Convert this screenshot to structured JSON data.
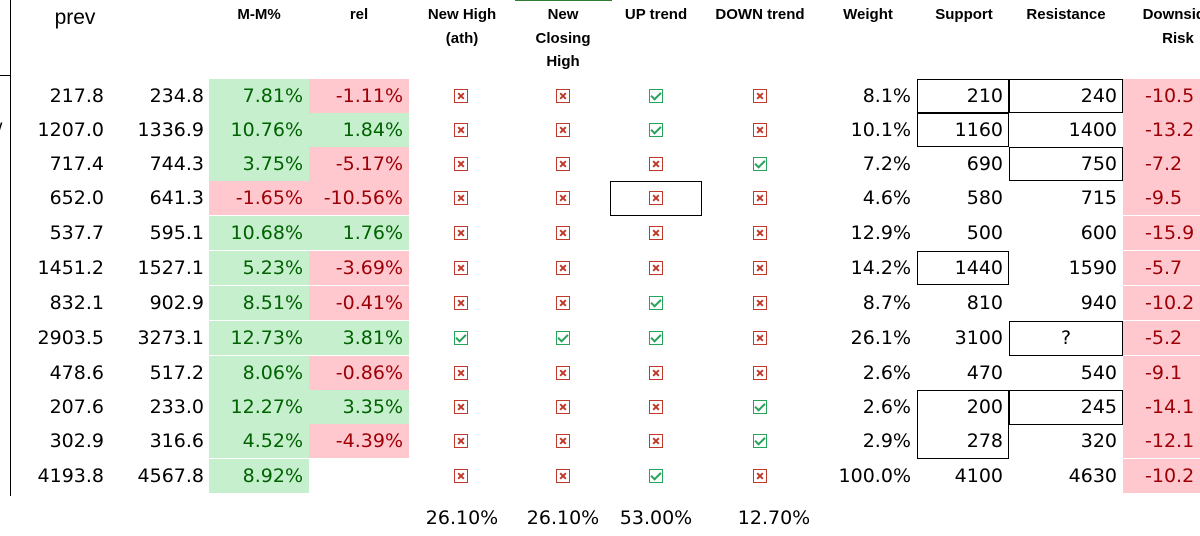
{
  "headers": {
    "prev": "prev",
    "mm": "M-M%",
    "rel": "rel",
    "new_high": [
      "New High",
      "(ath)"
    ],
    "new_closing_high": [
      "New",
      "Closing",
      "High"
    ],
    "up_trend": "UP trend",
    "down_trend": "DOWN trend",
    "weight": "Weight",
    "support": "Support",
    "resistance": "Resistance",
    "downside_risk": [
      "Downside",
      "Risk"
    ]
  },
  "rows": [
    {
      "prev": "217.8",
      "cur": "234.8",
      "mm": "7.81%",
      "mm_color": "green",
      "rel": "-1.11%",
      "rel_color": "red",
      "new_high": "x",
      "new_closing_high": "x",
      "up": "v",
      "down": "x",
      "weight": "8.1%",
      "support": "210",
      "resistance": "240",
      "risk": "-10.5"
    },
    {
      "prev": "1207.0",
      "cur": "1336.9",
      "mm": "10.76%",
      "mm_color": "green",
      "rel": "1.84%",
      "rel_color": "green",
      "new_high": "x",
      "new_closing_high": "x",
      "up": "v",
      "down": "x",
      "weight": "10.1%",
      "support": "1160",
      "resistance": "1400",
      "risk": "-13.2"
    },
    {
      "prev": "717.4",
      "cur": "744.3",
      "mm": "3.75%",
      "mm_color": "green",
      "rel": "-5.17%",
      "rel_color": "red",
      "new_high": "x",
      "new_closing_high": "x",
      "up": "x",
      "down": "v",
      "weight": "7.2%",
      "support": "690",
      "resistance": "750",
      "risk": "-7.2"
    },
    {
      "prev": "652.0",
      "cur": "641.3",
      "mm": "-1.65%",
      "mm_color": "red",
      "rel": "-10.56%",
      "rel_color": "red",
      "new_high": "x",
      "new_closing_high": "x",
      "up": "x",
      "down": "x",
      "weight": "4.6%",
      "support": "580",
      "resistance": "715",
      "risk": "-9.5"
    },
    {
      "prev": "537.7",
      "cur": "595.1",
      "mm": "10.68%",
      "mm_color": "green",
      "rel": "1.76%",
      "rel_color": "green",
      "new_high": "x",
      "new_closing_high": "x",
      "up": "x",
      "down": "x",
      "weight": "12.9%",
      "support": "500",
      "resistance": "600",
      "risk": "-15.9"
    },
    {
      "prev": "1451.2",
      "cur": "1527.1",
      "mm": "5.23%",
      "mm_color": "green",
      "rel": "-3.69%",
      "rel_color": "red",
      "new_high": "x",
      "new_closing_high": "x",
      "up": "x",
      "down": "x",
      "weight": "14.2%",
      "support": "1440",
      "resistance": "1590",
      "risk": "-5.7"
    },
    {
      "prev": "832.1",
      "cur": "902.9",
      "mm": "8.51%",
      "mm_color": "green",
      "rel": "-0.41%",
      "rel_color": "red",
      "new_high": "x",
      "new_closing_high": "x",
      "up": "v",
      "down": "x",
      "weight": "8.7%",
      "support": "810",
      "resistance": "940",
      "risk": "-10.2"
    },
    {
      "prev": "2903.5",
      "cur": "3273.1",
      "mm": "12.73%",
      "mm_color": "green",
      "rel": "3.81%",
      "rel_color": "green",
      "new_high": "v",
      "new_closing_high": "v",
      "up": "v",
      "down": "x",
      "weight": "26.1%",
      "support": "3100",
      "resistance": "?",
      "risk": "-5.2"
    },
    {
      "prev": "478.6",
      "cur": "517.2",
      "mm": "8.06%",
      "mm_color": "green",
      "rel": "-0.86%",
      "rel_color": "red",
      "new_high": "x",
      "new_closing_high": "x",
      "up": "x",
      "down": "x",
      "weight": "2.6%",
      "support": "470",
      "resistance": "540",
      "risk": "-9.1"
    },
    {
      "prev": "207.6",
      "cur": "233.0",
      "mm": "12.27%",
      "mm_color": "green",
      "rel": "3.35%",
      "rel_color": "green",
      "new_high": "x",
      "new_closing_high": "x",
      "up": "x",
      "down": "v",
      "weight": "2.6%",
      "support": "200",
      "resistance": "245",
      "risk": "-14.1"
    },
    {
      "prev": "302.9",
      "cur": "316.6",
      "mm": "4.52%",
      "mm_color": "green",
      "rel": "-4.39%",
      "rel_color": "red",
      "new_high": "x",
      "new_closing_high": "x",
      "up": "x",
      "down": "v",
      "weight": "2.9%",
      "support": "278",
      "resistance": "320",
      "risk": "-12.1"
    },
    {
      "prev": "4193.8",
      "cur": "4567.8",
      "mm": "8.92%",
      "mm_color": "green",
      "rel": "",
      "rel_color": "none",
      "new_high": "x",
      "new_closing_high": "x",
      "up": "v",
      "down": "x",
      "weight": "100.0%",
      "support": "4100",
      "resistance": "4630",
      "risk": "-10.2"
    }
  ],
  "footer": {
    "new_high": "26.10%",
    "new_closing_high": "26.10%",
    "up_trend": "53.00%",
    "down_trend": "12.70%"
  },
  "stray_mark": "/",
  "colors": {
    "positive_bg": "#c6efce",
    "positive_text": "#006100",
    "negative_bg": "#ffc7ce",
    "negative_text": "#9c0006",
    "check_icon": "#27a35a",
    "cross_icon": "#c0392b"
  },
  "icons": {
    "v": "check-box-icon",
    "x": "cross-box-icon"
  }
}
